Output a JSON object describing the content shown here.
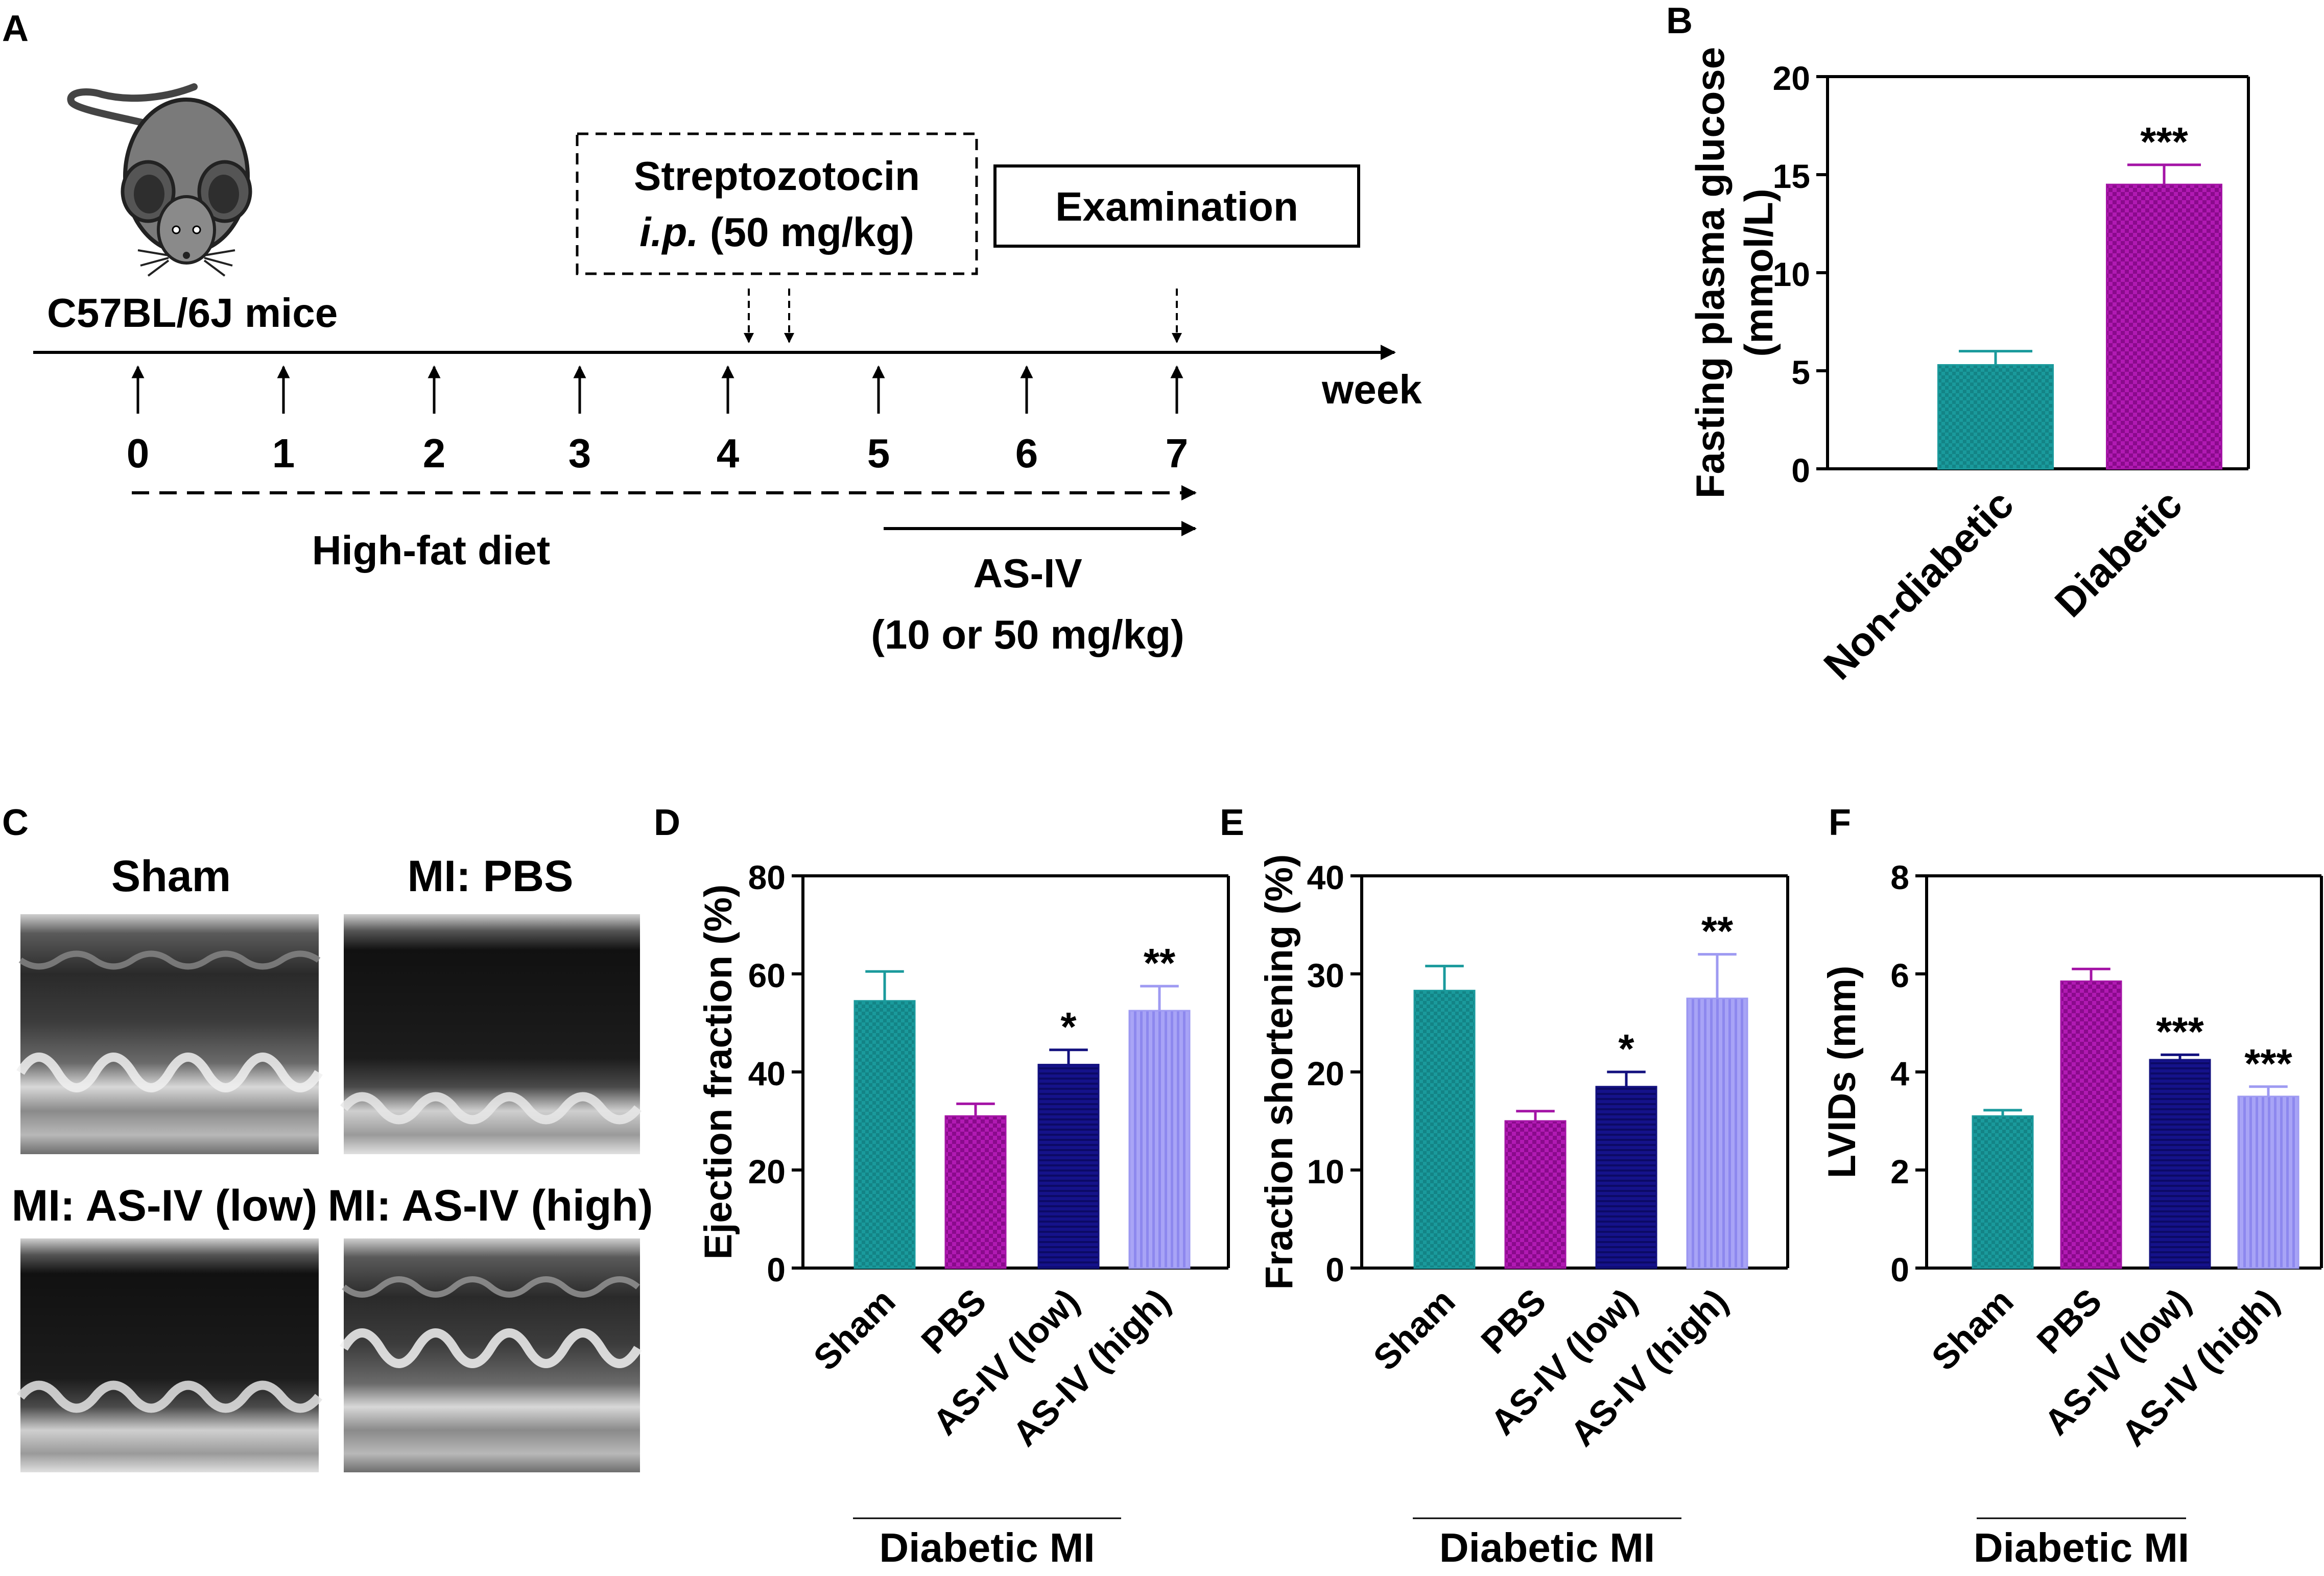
{
  "panel_labels": {
    "a": "A",
    "b": "B",
    "c": "C",
    "d": "D",
    "e": "E",
    "f": "F"
  },
  "timeline": {
    "mouse_label": "C57BL/6J mice",
    "stz_line1": "Streptozotocin",
    "stz_line2_italic": "i.p.",
    "stz_line2_rest": " (50 mg/kg)",
    "examination": "Examination",
    "axis_unit": "week",
    "weeks": [
      "0",
      "1",
      "2",
      "3",
      "4",
      "5",
      "6",
      "7"
    ],
    "diet_label": "High-fat diet",
    "asiv_line1": "AS-IV",
    "asiv_line2": "(10 or 50 mg/kg)"
  },
  "echo": {
    "sham": "Sham",
    "mi_pbs": "MI: PBS",
    "mi_low": "MI: AS-IV (low)",
    "mi_high": "MI: AS-IV (high)"
  },
  "group_label": "Diabetic MI",
  "colors": {
    "teal": "#1a9a9c",
    "magenta": "#a414a6",
    "navy": "#12107e",
    "lavender": "#9e9af2"
  },
  "chart_data": [
    {
      "panel": "B",
      "type": "bar",
      "title": "",
      "ylabel_line1": "Fasting plasma glucose",
      "ylabel_line2": "(mmol/L)",
      "categories": [
        "Non-diabetic",
        "Diabetic"
      ],
      "values": [
        5.3,
        14.5
      ],
      "errors": [
        0.7,
        1.0
      ],
      "significance": [
        "",
        "***"
      ],
      "ylim": [
        0,
        20
      ],
      "yticks": [
        "0",
        "5",
        "10",
        "15",
        "20"
      ]
    },
    {
      "panel": "D",
      "type": "bar",
      "ylabel": "Ejection fraction (%)",
      "categories": [
        "Sham",
        "PBS",
        "AS-IV (low)",
        "AS-IV (high)"
      ],
      "values": [
        54.5,
        31,
        41.5,
        52.5
      ],
      "errors": [
        6,
        2.5,
        3,
        5
      ],
      "significance": [
        "",
        "",
        "*",
        "**"
      ],
      "ylim": [
        0,
        80
      ],
      "yticks": [
        "0",
        "20",
        "40",
        "60",
        "80"
      ]
    },
    {
      "panel": "E",
      "type": "bar",
      "ylabel": "Fraction shortening (%)",
      "categories": [
        "Sham",
        "PBS",
        "AS-IV (low)",
        "AS-IV (high)"
      ],
      "values": [
        28.3,
        15,
        18.5,
        27.5
      ],
      "errors": [
        2.5,
        1,
        1.5,
        4.5
      ],
      "significance": [
        "",
        "",
        "*",
        "**"
      ],
      "ylim": [
        0,
        40
      ],
      "yticks": [
        "0",
        "10",
        "20",
        "30",
        "40"
      ]
    },
    {
      "panel": "F",
      "type": "bar",
      "ylabel": "LVIDs (mm)",
      "categories": [
        "Sham",
        "PBS",
        "AS-IV (low)",
        "AS-IV (high)"
      ],
      "values": [
        3.1,
        5.85,
        4.25,
        3.5
      ],
      "errors": [
        0.12,
        0.25,
        0.1,
        0.2
      ],
      "significance": [
        "",
        "",
        "***",
        "***"
      ],
      "ylim": [
        0,
        8
      ],
      "yticks": [
        "0",
        "2",
        "4",
        "6",
        "8"
      ]
    }
  ]
}
